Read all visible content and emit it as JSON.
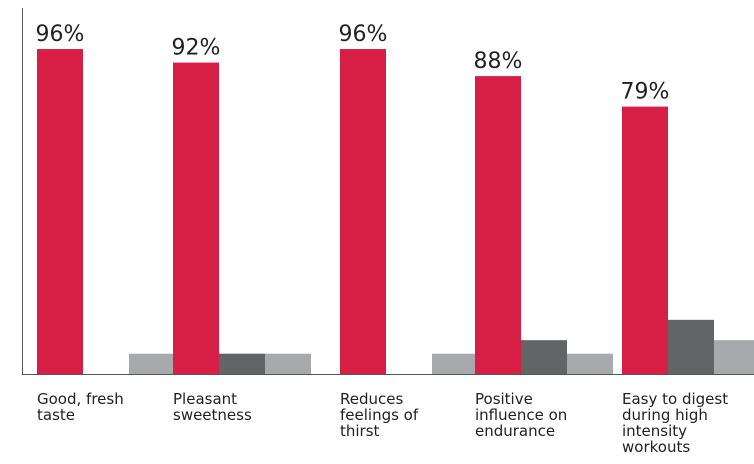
{
  "chart_data": {
    "type": "bar",
    "categories": [
      "Good, fresh taste",
      "Pleasant sweetness",
      "Reduces feelings of thirst",
      "Positive influence on endurance",
      "Easy to digest during high intensity workouts"
    ],
    "series": [
      {
        "color": "#d71f45",
        "values": [
          96,
          92,
          96,
          88,
          79
        ],
        "value_labels": [
          "96%",
          "92%",
          "96%",
          "88%",
          "79%"
        ]
      },
      {
        "color": "#636466",
        "values": [
          null,
          6,
          null,
          10,
          16
        ]
      },
      {
        "color": "#a7a9ac",
        "values": [
          6,
          6,
          6,
          6,
          10
        ]
      }
    ],
    "ylim": [
      0,
      100
    ]
  }
}
